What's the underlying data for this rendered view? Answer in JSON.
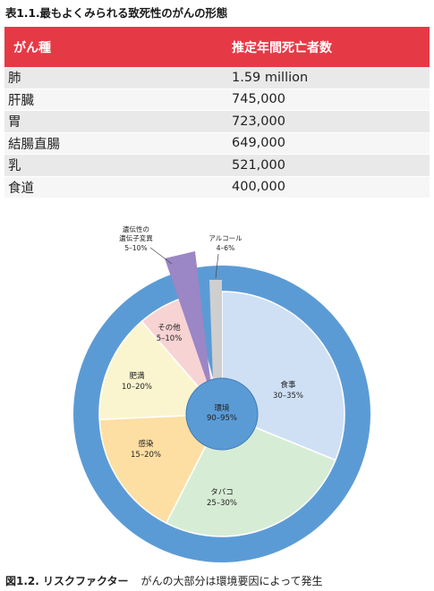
{
  "table": {
    "title": "表1.1.最もよくみられる致死性のがんの形態",
    "headers": [
      "がん種",
      "推定年間死亡者数"
    ],
    "rows": [
      {
        "type": "肺",
        "deaths": "1.59 million"
      },
      {
        "type": "肝臓",
        "deaths": "745,000"
      },
      {
        "type": "胃",
        "deaths": "723,000"
      },
      {
        "type": "結腸直腸",
        "deaths": "649,000"
      },
      {
        "type": "乳",
        "deaths": "521,000"
      },
      {
        "type": "食道",
        "deaths": "400,000"
      }
    ]
  },
  "figure": {
    "center": {
      "name": "環境",
      "range": "90–95%"
    },
    "segments": [
      {
        "name": "食事",
        "range": "30–35%",
        "value": 32.5,
        "color": "#cfe0f5"
      },
      {
        "name": "タバコ",
        "range": "25–30%",
        "value": 27.5,
        "color": "#d7ecd5"
      },
      {
        "name": "感染",
        "range": "15–20%",
        "value": 17.5,
        "color": "#fddfa3"
      },
      {
        "name": "肥満",
        "range": "10–20%",
        "value": 15,
        "color": "#fbf5cf"
      },
      {
        "name": "その他",
        "range": "5–10%",
        "value": 7.5,
        "color": "#f8d3d3"
      }
    ],
    "genetic": {
      "line1": "遺伝性の",
      "line2": "遺伝子変異",
      "range": "5–10%",
      "color": "#9b86c6"
    },
    "alcohol": {
      "name": "アルコール",
      "range": "4–6%",
      "color": "#cfcfcf"
    },
    "ring_color": "#5b9bd5",
    "caption_label": "図1.2. リスクファクター",
    "caption_text": "がんの大部分は環境要因によって発生"
  }
}
